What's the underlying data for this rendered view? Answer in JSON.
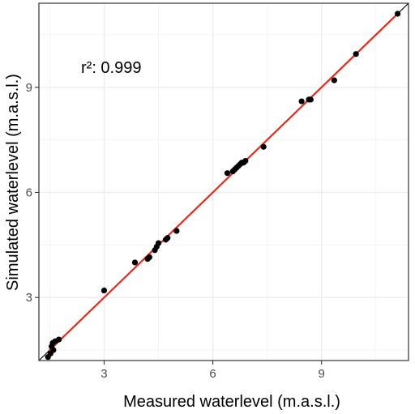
{
  "chart_data": {
    "type": "scatter",
    "title": "",
    "xlabel": "Measured waterlevel (m.a.s.l.)",
    "ylabel": "Simulated waterlevel (m.a.s.l.)",
    "xlim": [
      1.2,
      11.4
    ],
    "ylim": [
      1.2,
      11.4
    ],
    "x_ticks": [
      3,
      6,
      9
    ],
    "y_ticks": [
      3,
      6,
      9
    ],
    "x_tick_labels": [
      "3",
      "6",
      "9"
    ],
    "y_tick_labels": [
      "3",
      "6",
      "9"
    ],
    "grid": true,
    "annotation": "r²: 0.999",
    "identity_line": {
      "color": "#000000",
      "x": [
        1.2,
        11.4
      ],
      "y": [
        1.2,
        11.4
      ]
    },
    "fit_line": {
      "color": "#e8291c",
      "x": [
        1.47,
        11.1
      ],
      "y": [
        1.47,
        11.1
      ]
    },
    "points": {
      "color": "#000000",
      "x": [
        1.45,
        1.52,
        1.55,
        1.58,
        1.6,
        1.65,
        1.75,
        3.0,
        3.85,
        4.2,
        4.25,
        4.4,
        4.45,
        4.5,
        4.7,
        4.75,
        5.0,
        6.4,
        6.55,
        6.6,
        6.65,
        6.7,
        6.75,
        6.8,
        6.85,
        6.9,
        7.4,
        8.45,
        8.65,
        8.7,
        9.35,
        9.95,
        11.1
      ],
      "y": [
        1.3,
        1.4,
        1.6,
        1.7,
        1.5,
        1.75,
        1.8,
        3.2,
        4.0,
        4.1,
        4.15,
        4.35,
        4.45,
        4.55,
        4.65,
        4.7,
        4.9,
        6.55,
        6.6,
        6.65,
        6.7,
        6.75,
        6.8,
        6.85,
        6.85,
        6.9,
        7.3,
        8.6,
        8.65,
        8.65,
        9.2,
        9.95,
        11.1
      ]
    }
  }
}
